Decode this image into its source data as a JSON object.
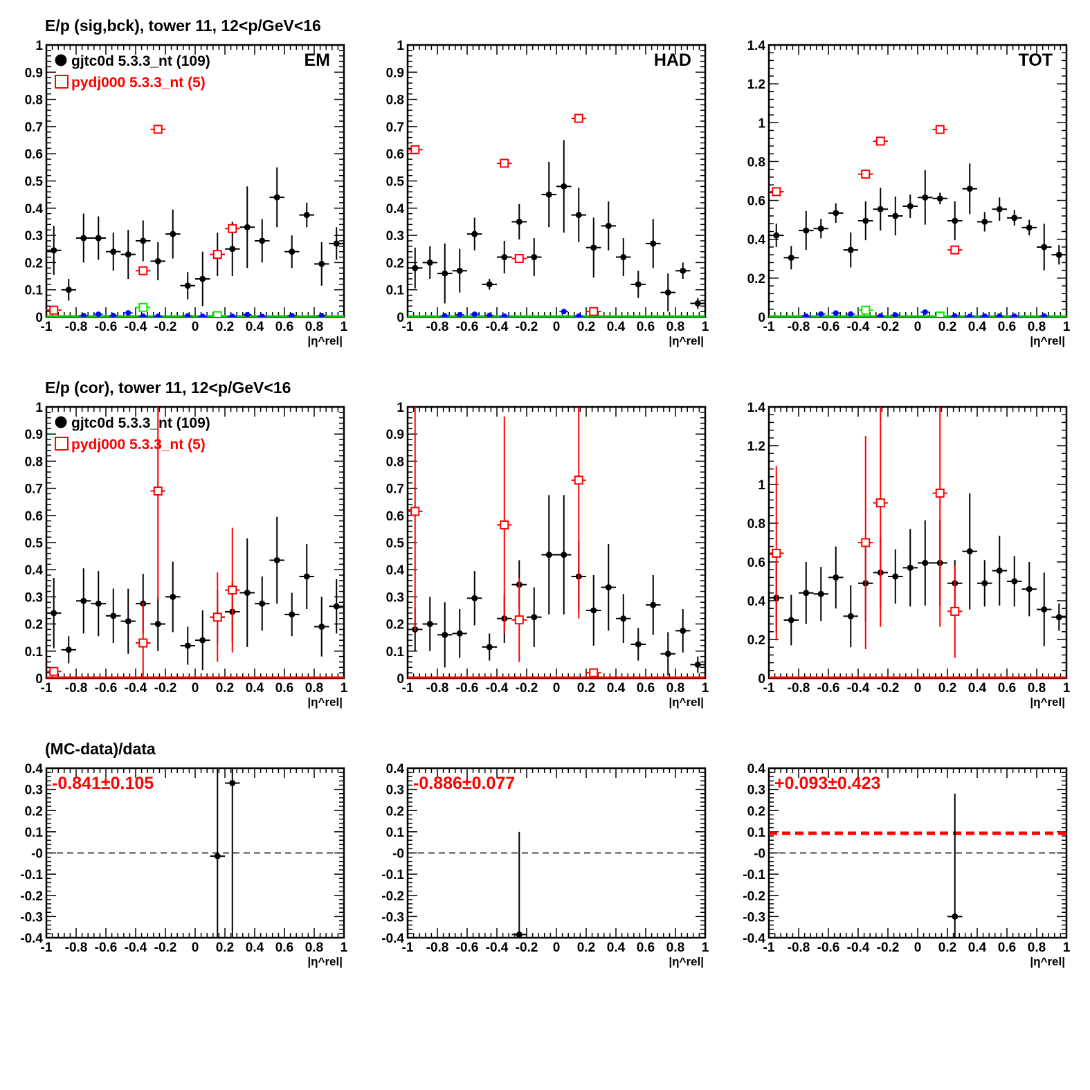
{
  "chart_data": [
    {
      "type": "scatter",
      "title": "E/p (sig,bck), tower 11, 12<p/GeV<16",
      "label": "EM",
      "ylim": [
        0,
        1
      ],
      "yticks": [
        "0",
        "0.1",
        "0.2",
        "0.3",
        "0.4",
        "0.5",
        "0.6",
        "0.7",
        "0.8",
        "0.9",
        "1"
      ],
      "legend": [
        "gjtc0d 5.3.3_nt (109)",
        "pydj000 5.3.3_nt (5)"
      ],
      "series": [
        {
          "color": "#000000",
          "marker": "dot",
          "x": [
            -0.95,
            -0.85,
            -0.75,
            -0.65,
            -0.55,
            -0.45,
            -0.35,
            -0.25,
            -0.15,
            -0.05,
            0.05,
            0.15,
            0.25,
            0.35,
            0.45,
            0.55,
            0.65,
            0.75,
            0.85,
            0.95
          ],
          "y": [
            0.245,
            0.1,
            0.29,
            0.29,
            0.24,
            0.23,
            0.28,
            0.205,
            0.305,
            0.115,
            0.14,
            0.23,
            0.25,
            0.33,
            0.28,
            0.44,
            0.24,
            0.375,
            0.195,
            0.27
          ],
          "err": [
            0.09,
            0.04,
            0.09,
            0.08,
            0.07,
            0.09,
            0.075,
            0.07,
            0.09,
            0.05,
            0.1,
            0.08,
            0.1,
            0.15,
            0.08,
            0.11,
            0.06,
            0.045,
            0.08,
            0.06
          ]
        },
        {
          "color": "#ff0000",
          "marker": "open-square",
          "x": [
            -0.95,
            -0.35,
            -0.25,
            0.15,
            0.25
          ],
          "y": [
            0.025,
            0.17,
            0.69,
            0.23,
            0.325
          ],
          "err": [
            0,
            0,
            0,
            0,
            0
          ]
        },
        {
          "color": "#0000ff",
          "marker": "small-dot",
          "x": [
            -0.75,
            -0.65,
            -0.55,
            -0.45,
            -0.35,
            -0.25,
            -0.05,
            0.05,
            0.15,
            0.25,
            0.35,
            0.45,
            0.65,
            0.85
          ],
          "y": [
            0.005,
            0.01,
            0.005,
            0.015,
            0.003,
            0.002,
            0.004,
            0.002,
            0.003,
            0.002,
            0.008,
            0.002,
            0.005,
            0.005
          ],
          "err": []
        },
        {
          "color": "#00ee00",
          "marker": "open-square",
          "x": [
            -0.35,
            0.15
          ],
          "y": [
            0.035,
            0.005
          ],
          "err": []
        }
      ],
      "baseline": "#00cc00"
    },
    {
      "type": "scatter",
      "title": "",
      "label": "HAD",
      "ylim": [
        0,
        1
      ],
      "yticks": [
        "0",
        "0.1",
        "0.2",
        "0.3",
        "0.4",
        "0.5",
        "0.6",
        "0.7",
        "0.8",
        "0.9",
        "1"
      ],
      "legend": [],
      "series": [
        {
          "color": "#000000",
          "marker": "dot",
          "x": [
            -0.95,
            -0.85,
            -0.75,
            -0.65,
            -0.55,
            -0.45,
            -0.35,
            -0.25,
            -0.15,
            -0.05,
            0.05,
            0.15,
            0.25,
            0.35,
            0.45,
            0.55,
            0.65,
            0.75,
            0.85,
            0.95
          ],
          "y": [
            0.18,
            0.2,
            0.16,
            0.17,
            0.305,
            0.12,
            0.22,
            0.35,
            0.22,
            0.45,
            0.48,
            0.375,
            0.255,
            0.335,
            0.22,
            0.12,
            0.27,
            0.09,
            0.17,
            0.05
          ],
          "err": [
            0.075,
            0.06,
            0.11,
            0.08,
            0.06,
            0.02,
            0.06,
            0.065,
            0.07,
            0.12,
            0.17,
            0.1,
            0.11,
            0.09,
            0.07,
            0.05,
            0.09,
            0.07,
            0.03,
            0.02
          ]
        },
        {
          "color": "#ff0000",
          "marker": "open-square",
          "x": [
            -0.95,
            -0.35,
            -0.25,
            0.15,
            0.25
          ],
          "y": [
            0.615,
            0.565,
            0.215,
            0.73,
            0.02
          ],
          "err": [
            0,
            0,
            0,
            0,
            0
          ]
        },
        {
          "color": "#0000ff",
          "marker": "small-dot",
          "x": [
            -0.75,
            -0.65,
            -0.55,
            -0.45,
            -0.35,
            0.05,
            0.15
          ],
          "y": [
            0.004,
            0.008,
            0.01,
            0.006,
            0.003,
            0.02,
            0.003
          ],
          "err": []
        }
      ],
      "baseline": "#00cc00"
    },
    {
      "type": "scatter",
      "title": "",
      "label": "TOT",
      "ylim": [
        0,
        1.4
      ],
      "yticks": [
        "0",
        "0.2",
        "0.4",
        "0.6",
        "0.8",
        "1",
        "1.2",
        "1.4"
      ],
      "legend": [],
      "series": [
        {
          "color": "#000000",
          "marker": "dot",
          "x": [
            -0.95,
            -0.85,
            -0.75,
            -0.65,
            -0.55,
            -0.45,
            -0.35,
            -0.25,
            -0.15,
            -0.05,
            0.05,
            0.15,
            0.25,
            0.35,
            0.45,
            0.55,
            0.65,
            0.75,
            0.85,
            0.95
          ],
          "y": [
            0.42,
            0.305,
            0.445,
            0.455,
            0.535,
            0.345,
            0.495,
            0.555,
            0.52,
            0.57,
            0.615,
            0.61,
            0.495,
            0.66,
            0.49,
            0.555,
            0.51,
            0.46,
            0.36,
            0.32
          ],
          "err": [
            0.06,
            0.06,
            0.1,
            0.05,
            0.05,
            0.09,
            0.1,
            0.11,
            0.1,
            0.06,
            0.14,
            0.03,
            0.1,
            0.13,
            0.05,
            0.06,
            0.04,
            0.04,
            0.12,
            0.05
          ]
        },
        {
          "color": "#ff0000",
          "marker": "open-square",
          "x": [
            -0.95,
            -0.35,
            -0.25,
            0.15,
            0.25
          ],
          "y": [
            0.645,
            0.735,
            0.905,
            0.965,
            0.345
          ],
          "err": [
            0,
            0,
            0,
            0,
            0
          ]
        },
        {
          "color": "#0000ff",
          "marker": "small-dot",
          "x": [
            -0.75,
            -0.65,
            -0.55,
            -0.45,
            -0.35,
            -0.25,
            -0.15,
            0.05,
            0.15,
            0.25,
            0.35,
            0.45,
            0.55,
            0.65,
            0.85
          ],
          "y": [
            0.004,
            0.015,
            0.02,
            0.015,
            0.03,
            0.005,
            0.01,
            0.025,
            0.005,
            0.005,
            0.003,
            0.004,
            0.005,
            0.004,
            0.005
          ],
          "err": []
        },
        {
          "color": "#00ee00",
          "marker": "open-square",
          "x": [
            -0.35,
            0.15
          ],
          "y": [
            0.035,
            0.005
          ],
          "err": []
        }
      ],
      "baseline": "#00cc00"
    },
    {
      "type": "scatter",
      "title": "E/p (cor), tower 11, 12<p/GeV<16",
      "label": "",
      "ylim": [
        0,
        1
      ],
      "yticks": [
        "0",
        "0.1",
        "0.2",
        "0.3",
        "0.4",
        "0.5",
        "0.6",
        "0.7",
        "0.8",
        "0.9",
        "1"
      ],
      "legend": [
        "gjtc0d 5.3.3_nt (109)",
        "pydj000 5.3.3_nt (5)"
      ],
      "series": [
        {
          "color": "#000000",
          "marker": "dot",
          "x": [
            -0.95,
            -0.85,
            -0.75,
            -0.65,
            -0.55,
            -0.45,
            -0.35,
            -0.25,
            -0.15,
            -0.05,
            0.05,
            0.15,
            0.25,
            0.35,
            0.45,
            0.55,
            0.65,
            0.75,
            0.85,
            0.95
          ],
          "y": [
            0.24,
            0.105,
            0.285,
            0.275,
            0.23,
            0.21,
            0.275,
            0.2,
            0.3,
            0.12,
            0.14,
            0.225,
            0.245,
            0.315,
            0.275,
            0.435,
            0.235,
            0.375,
            0.19,
            0.265
          ],
          "err": [
            0.13,
            0.05,
            0.12,
            0.12,
            0.1,
            0.12,
            0.11,
            0.1,
            0.13,
            0.07,
            0.11,
            0.1,
            0.11,
            0.2,
            0.1,
            0.16,
            0.08,
            0.12,
            0.11,
            0.1
          ]
        },
        {
          "color": "#ff0000",
          "marker": "open-square",
          "x": [
            -0.95,
            -0.35,
            -0.25,
            0.15,
            0.25
          ],
          "y": [
            0.025,
            0.13,
            0.69,
            0.225,
            0.325
          ],
          "err": [
            0,
            0.15,
            0.4,
            0.165,
            0.23
          ]
        }
      ],
      "baseline": "#ff0000"
    },
    {
      "type": "scatter",
      "title": "",
      "label": "",
      "ylim": [
        0,
        1
      ],
      "yticks": [
        "0",
        "0.1",
        "0.2",
        "0.3",
        "0.4",
        "0.5",
        "0.6",
        "0.7",
        "0.8",
        "0.9",
        "1"
      ],
      "legend": [],
      "series": [
        {
          "color": "#000000",
          "marker": "dot",
          "x": [
            -0.95,
            -0.85,
            -0.75,
            -0.65,
            -0.55,
            -0.45,
            -0.35,
            -0.25,
            -0.15,
            -0.05,
            0.05,
            0.15,
            0.25,
            0.35,
            0.45,
            0.55,
            0.65,
            0.75,
            0.85,
            0.95
          ],
          "y": [
            0.18,
            0.2,
            0.16,
            0.165,
            0.295,
            0.115,
            0.22,
            0.345,
            0.225,
            0.455,
            0.455,
            0.375,
            0.25,
            0.335,
            0.22,
            0.125,
            0.27,
            0.09,
            0.175,
            0.05
          ],
          "err": [
            0.08,
            0.1,
            0.12,
            0.09,
            0.1,
            0.05,
            0.09,
            0.09,
            0.11,
            0.22,
            0.22,
            0.13,
            0.13,
            0.16,
            0.09,
            0.06,
            0.11,
            0.08,
            0.08,
            0.03
          ]
        },
        {
          "color": "#ff0000",
          "marker": "open-square",
          "x": [
            -0.95,
            -0.35,
            -0.25,
            0.15,
            0.25
          ],
          "y": [
            0.615,
            0.565,
            0.215,
            0.73,
            0.02
          ],
          "err": [
            0.44,
            0.4,
            0.155,
            0.51,
            0
          ]
        }
      ],
      "baseline": "#ff0000"
    },
    {
      "type": "scatter",
      "title": "",
      "label": "",
      "ylim": [
        0,
        1.4
      ],
      "yticks": [
        "0",
        "0.2",
        "0.4",
        "0.6",
        "0.8",
        "1",
        "1.2",
        "1.4"
      ],
      "legend": [],
      "series": [
        {
          "color": "#000000",
          "marker": "dot",
          "x": [
            -0.95,
            -0.85,
            -0.75,
            -0.65,
            -0.55,
            -0.45,
            -0.35,
            -0.25,
            -0.15,
            -0.05,
            0.05,
            0.15,
            0.25,
            0.35,
            0.45,
            0.55,
            0.65,
            0.75,
            0.85,
            0.95
          ],
          "y": [
            0.415,
            0.3,
            0.44,
            0.435,
            0.52,
            0.32,
            0.49,
            0.545,
            0.525,
            0.57,
            0.595,
            0.595,
            0.49,
            0.655,
            0.49,
            0.555,
            0.5,
            0.46,
            0.355,
            0.315
          ],
          "err": [
            0.18,
            0.13,
            0.16,
            0.14,
            0.16,
            0.16,
            0.2,
            0.18,
            0.14,
            0.2,
            0.22,
            0.22,
            0.12,
            0.3,
            0.12,
            0.18,
            0.13,
            0.14,
            0.19,
            0.07
          ]
        },
        {
          "color": "#ff0000",
          "marker": "open-square",
          "x": [
            -0.95,
            -0.35,
            -0.25,
            0.15,
            0.25
          ],
          "y": [
            0.645,
            0.7,
            0.905,
            0.955,
            0.345
          ],
          "err": [
            0.45,
            0.55,
            0.64,
            0.69,
            0.24
          ]
        }
      ],
      "baseline": "#ff0000"
    },
    {
      "type": "scatter",
      "title": "(MC-data)/data",
      "label": "-0.841±0.105",
      "ylim": [
        -0.4,
        0.4
      ],
      "yticks": [
        "-0.4",
        "-0.3",
        "-0.2",
        "-0.1",
        "-0",
        "0.1",
        "0.2",
        "0.3",
        "0.4"
      ],
      "legend": [],
      "series": [
        {
          "color": "#000000",
          "marker": "dot",
          "x": [
            0.15,
            0.25
          ],
          "y": [
            -0.015,
            0.33
          ],
          "err": [
            0.6,
            0.9
          ]
        }
      ],
      "fit": null
    },
    {
      "type": "scatter",
      "title": "",
      "label": "-0.886±0.077",
      "ylim": [
        -0.4,
        0.4
      ],
      "yticks": [
        "-0.4",
        "-0.3",
        "-0.2",
        "-0.1",
        "-0",
        "0.1",
        "0.2",
        "0.3",
        "0.4"
      ],
      "legend": [],
      "series": [
        {
          "color": "#000000",
          "marker": "dot",
          "x": [
            -0.25
          ],
          "y": [
            -0.385
          ],
          "err": [
            0.485
          ]
        }
      ],
      "fit": null
    },
    {
      "type": "scatter",
      "title": "",
      "label": "+0.093±0.423",
      "ylim": [
        -0.4,
        0.4
      ],
      "yticks": [
        "-0.4",
        "-0.3",
        "-0.2",
        "-0.1",
        "-0",
        "0.1",
        "0.2",
        "0.3",
        "0.4"
      ],
      "legend": [],
      "series": [
        {
          "color": "#000000",
          "marker": "dot",
          "x": [
            0.25
          ],
          "y": [
            -0.3
          ],
          "err": [
            0.58
          ]
        }
      ],
      "fit": 0.093
    }
  ],
  "xlim": [
    -1,
    1
  ],
  "xlabel": "|η^rel|",
  "xticks": [
    "-1",
    "-0.8",
    "-0.6",
    "-0.4",
    "-0.2",
    "0",
    "0.2",
    "0.4",
    "0.6",
    "0.8",
    "1"
  ],
  "colors": {
    "data": "#000000",
    "mc": "#ff0000",
    "blue": "#0000ff",
    "green": "#00ee00",
    "fit": "#ff0000"
  }
}
